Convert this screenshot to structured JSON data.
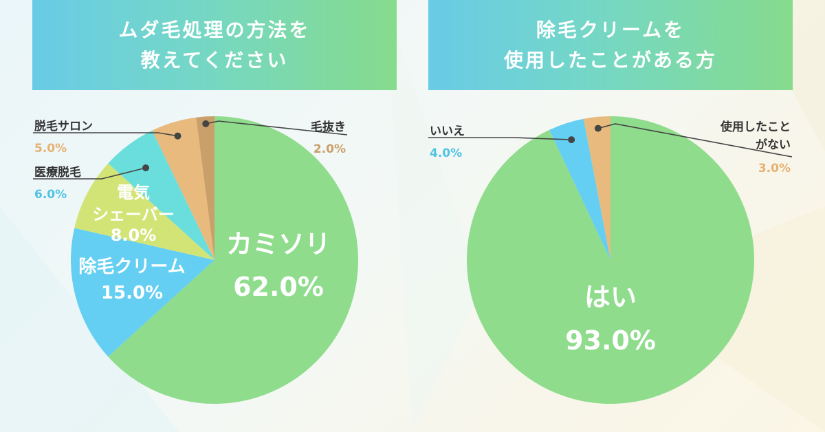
{
  "chart_data": [
    {
      "type": "pie",
      "title_lines": [
        "ムダ毛処理の方法を",
        "教えてください"
      ],
      "slices": [
        {
          "label_lines": [
            "カミソリ"
          ],
          "value": 62.0,
          "value_label": "62.0%",
          "color": "#8fdc8c",
          "label_mode": "inside",
          "text_color": "#ffffff"
        },
        {
          "label_lines": [
            "除毛クリーム"
          ],
          "value": 15.0,
          "value_label": "15.0%",
          "color": "#64cff2",
          "label_mode": "inside",
          "text_color": "#ffffff"
        },
        {
          "label_lines": [
            "電気",
            "シェーバー"
          ],
          "value": 8.0,
          "value_label": "8.0%",
          "color": "#d3e476",
          "label_mode": "inside",
          "text_color": "#ffffff"
        },
        {
          "label_lines": [
            "医療脱毛"
          ],
          "value": 6.0,
          "value_label": "6.0%",
          "color": "#69dedc",
          "label_mode": "callout",
          "pct_color": "#4fc3e3"
        },
        {
          "label_lines": [
            "脱毛サロン"
          ],
          "value": 5.0,
          "value_label": "5.0%",
          "color": "#e8ba7d",
          "label_mode": "callout",
          "pct_color": "#e5b170"
        },
        {
          "label_lines": [
            "毛抜き"
          ],
          "value": 2.0,
          "value_label": "2.0%",
          "color": "#c99f6a",
          "label_mode": "callout",
          "pct_color": "#c99f6a"
        }
      ]
    },
    {
      "type": "pie",
      "title_lines": [
        "除毛クリームを",
        "使用したことがある方"
      ],
      "slices": [
        {
          "label_lines": [
            "はい"
          ],
          "value": 93.0,
          "value_label": "93.0%",
          "color": "#8fdc8c",
          "label_mode": "inside",
          "text_color": "#ffffff"
        },
        {
          "label_lines": [
            "いいえ"
          ],
          "value": 4.0,
          "value_label": "4.0%",
          "color": "#64cff2",
          "label_mode": "callout",
          "pct_color": "#4fc3e3"
        },
        {
          "label_lines": [
            "使用したこと",
            "がない"
          ],
          "value": 3.0,
          "value_label": "3.0%",
          "color": "#e8ba7d",
          "label_mode": "callout",
          "pct_color": "#e5b170"
        }
      ]
    }
  ]
}
